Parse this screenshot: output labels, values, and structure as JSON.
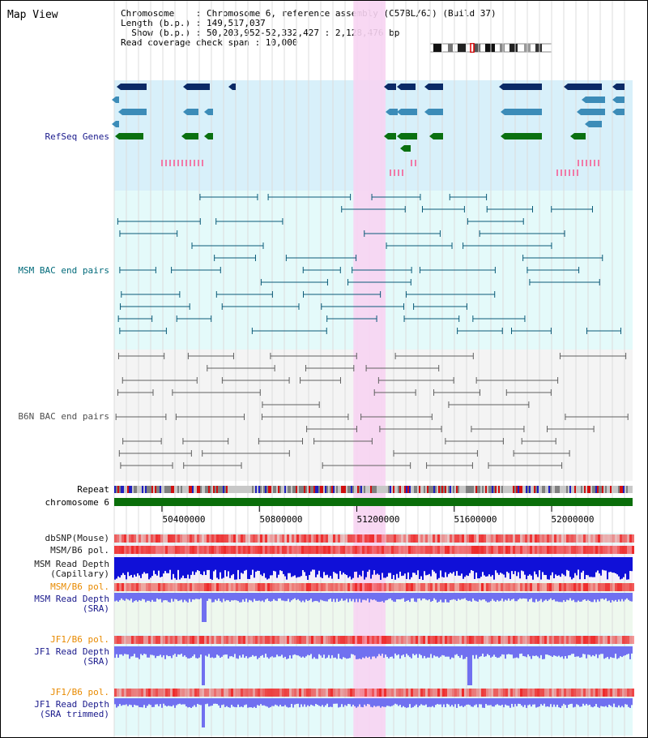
{
  "page_title": "Map View",
  "header": {
    "line1": "Chromosome    : Chromosome 6, reference assembly (C57BL/6J) (Build 37)",
    "line2": "Length (b.p.) : 149,517,037",
    "line3": "  Show (b.p.) : 50,203,952-52,332,427 : 2,128,476 bp",
    "line4": "Read coverage check span : 10,000"
  },
  "axis": {
    "ticks": [
      "50400000",
      "50800000",
      "51200000",
      "51600000",
      "52000000"
    ],
    "tick_values": [
      50400000,
      50800000,
      51200000,
      51600000,
      52000000
    ],
    "range": [
      50203952,
      52332427
    ]
  },
  "highlight_range": [
    51186000,
    51318000
  ],
  "tracks": {
    "refseq": "RefSeq Genes",
    "msm_bac": "MSM BAC end pairs",
    "b6n_bac": "B6N BAC end pairs",
    "repeat": "Repeat",
    "chromosome": "chromosome 6",
    "dbsnp": "dbSNP(Mouse)",
    "msm_b6_pol": "MSM/B6 pol.",
    "msm_depth_cap_1": "MSM Read Depth",
    "msm_depth_cap_2": "(Capillary)",
    "msm_b6_pol_sra": "MSM/B6 pol.",
    "msm_depth_sra_1": "MSM Read Depth",
    "msm_depth_sra_2": "(SRA)",
    "jf1_b6_pol": "JF1/B6 pol.",
    "jf1_depth_1": "JF1 Read Depth",
    "jf1_depth_2": "(SRA)",
    "jf1_b6_pol_2": "JF1/B6 pol.",
    "jf1_trim_1": "JF1 Read Depth",
    "jf1_trim_2": "(SRA trimmed)"
  },
  "colors": {
    "label_blue": "#1a1a8c",
    "label_teal": "#006a7a",
    "label_navy": "#202070",
    "label_orange": "#e88a00",
    "refseq_bg": "#d8f0fa",
    "bac_bg": "#e4fafa",
    "b6n_bg": "#f4f4f4",
    "highlight": "#f7d4f2",
    "gene_dark": "#0b2a66",
    "gene_mid": "#3c8cb8",
    "gene_green": "#0a7010",
    "bac_msm": "#0a5a78",
    "bac_b6n": "#606060",
    "chrom": "#0a6e0a",
    "depth_dark": "#1010d8",
    "depth_light": "#7070f0",
    "pol_red": "#f05050"
  }
}
